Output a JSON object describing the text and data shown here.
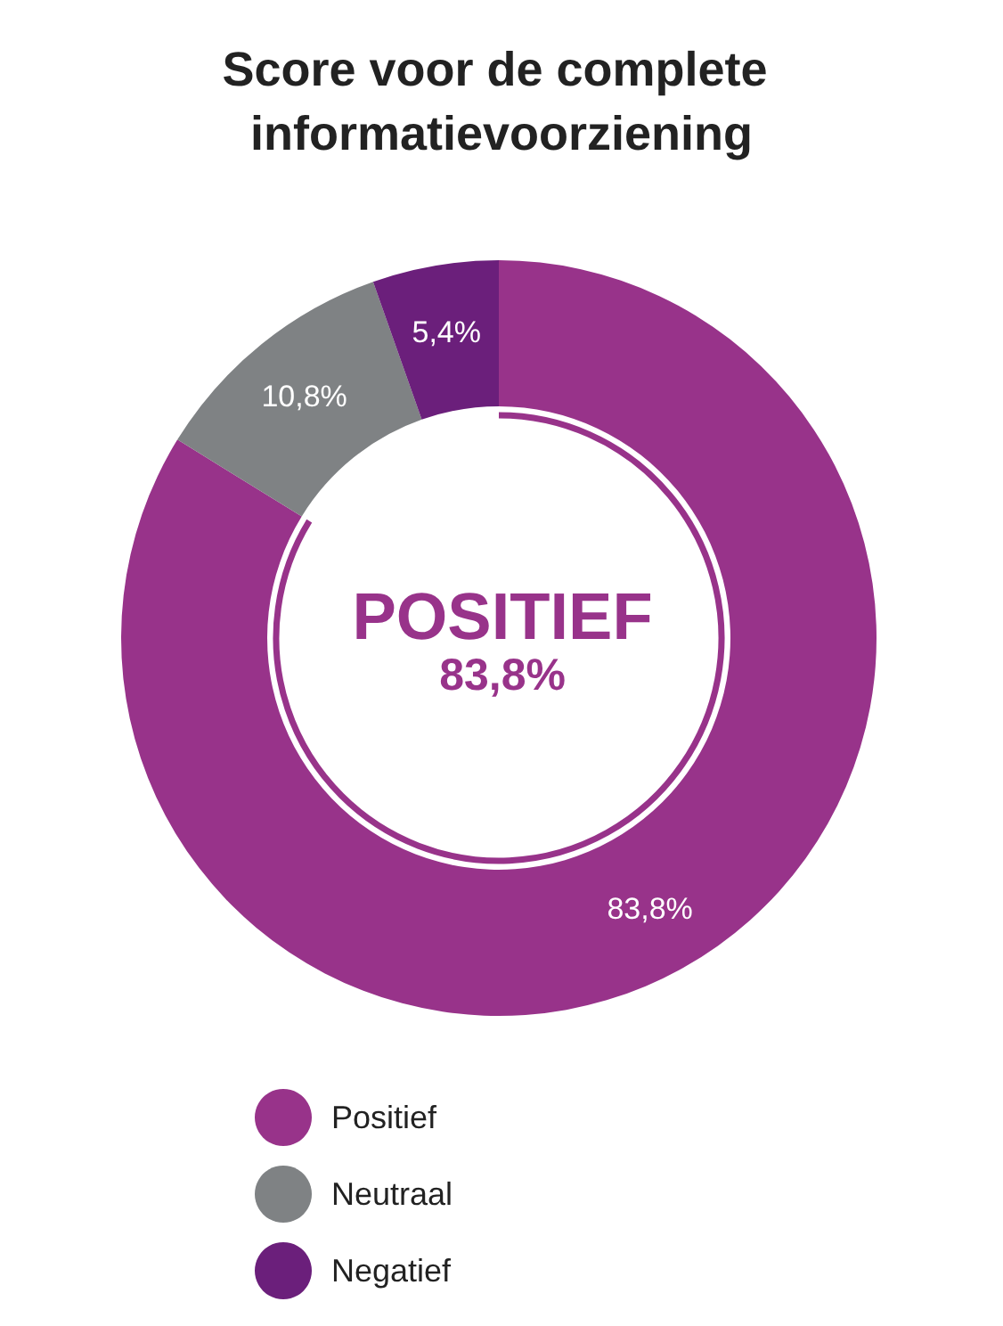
{
  "chart_data": {
    "type": "donut",
    "title": "Score voor de complete informatievoorziening",
    "categories": [
      "Positief",
      "Neutraal",
      "Negatief"
    ],
    "values": [
      83.8,
      10.8,
      5.4
    ],
    "colors": [
      "#98338a",
      "#7f8284",
      "#6b1f7b"
    ],
    "value_labels": [
      "83,8%",
      "10,8%",
      "5,4%"
    ],
    "annotations": [
      "POSITIEF",
      "83,8%"
    ],
    "legend": "bottom left"
  }
}
